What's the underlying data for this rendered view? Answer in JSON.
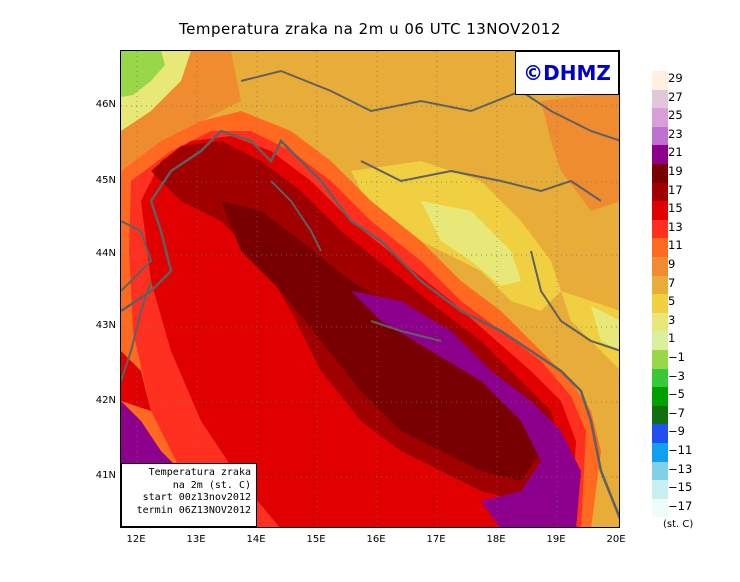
{
  "title": "Temperatura zraka na 2m u 06 UTC 13NOV2012",
  "logo": "©DHMZ",
  "info": {
    "line1": "Temperatura zraka",
    "line2": "na 2m (st. C)",
    "line3": "start 00z13nov2012",
    "line4": "termin 06Z13NOV2012"
  },
  "lat_ticks": [
    "46N",
    "45N",
    "44N",
    "43N",
    "42N",
    "41N"
  ],
  "lon_ticks": [
    "12E",
    "13E",
    "14E",
    "15E",
    "16E",
    "17E",
    "18E",
    "19E",
    "20E"
  ],
  "legend": {
    "labels": [
      "29",
      "27",
      "25",
      "23",
      "21",
      "19",
      "17",
      "15",
      "13",
      "11",
      "9",
      "7",
      "5",
      "3",
      "1",
      "−1",
      "−3",
      "−5",
      "−7",
      "−9",
      "−11",
      "−13",
      "−15",
      "−17"
    ],
    "colors": [
      "#fff0e0",
      "#e0c8d8",
      "#d8a0d8",
      "#c070d0",
      "#8c008c",
      "#780000",
      "#a00000",
      "#e00000",
      "#ff3020",
      "#ff6a20",
      "#f08c30",
      "#e8ac38",
      "#f0d040",
      "#e8e878",
      "#d8f0a0",
      "#98d848",
      "#38c838",
      "#00a000",
      "#107010",
      "#2050f0",
      "#10a0f0",
      "#80d0e8",
      "#c8f0f0",
      "#eefcfc"
    ],
    "unit": "(st. C)"
  },
  "map_colors": {
    "purple": "#8c008c",
    "dark_red": "#780000",
    "red_dark": "#a00000",
    "red": "#e00000",
    "orange_red": "#ff3020",
    "orange": "#ff6a20",
    "light_orange": "#f08c30",
    "amber": "#e8ac38",
    "yellow": "#f0d040",
    "pale_yellow": "#e8e878",
    "pale_green": "#d8f0a0",
    "green": "#98d848",
    "border": "#606060"
  }
}
